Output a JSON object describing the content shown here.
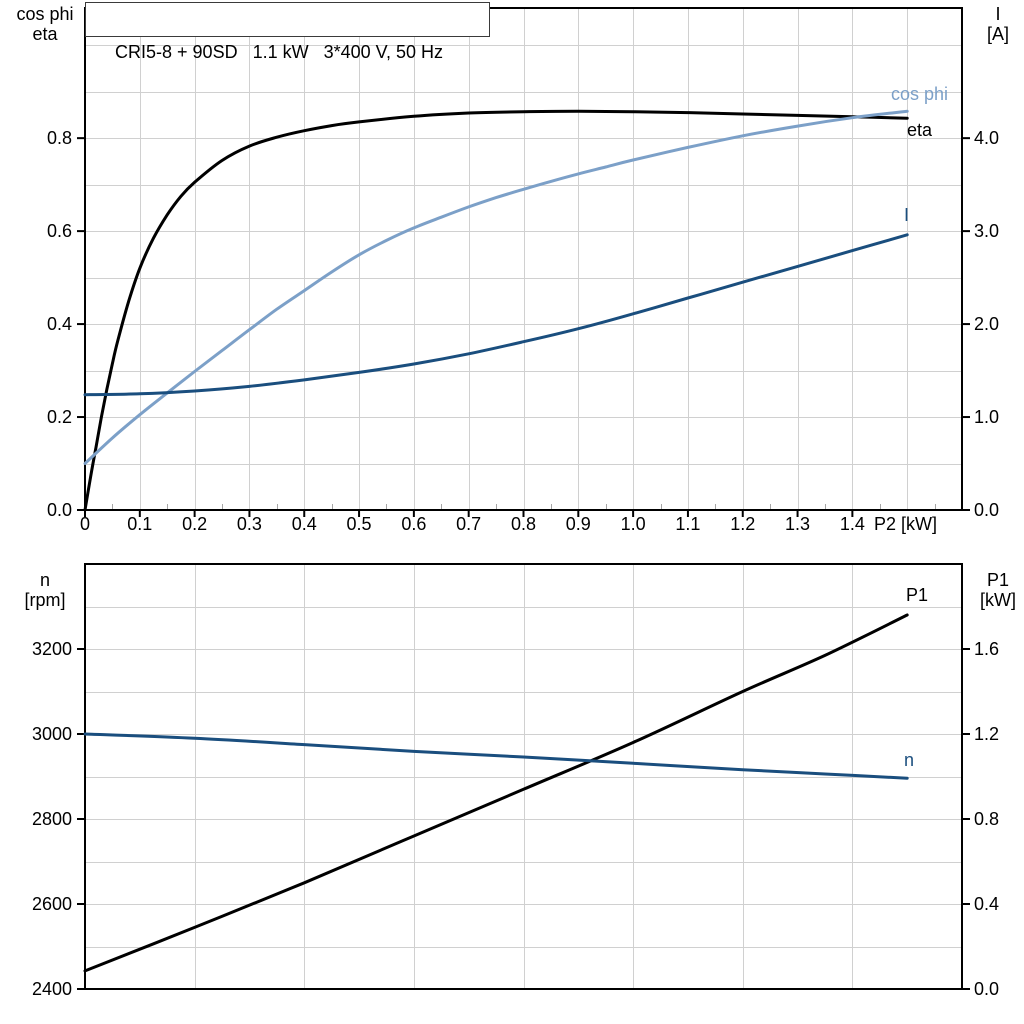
{
  "title_box": "CRI5-8 + 90SD   1.1 kW   3*400 V, 50 Hz",
  "colors": {
    "black": "#000000",
    "dark_blue": "#1a4e7e",
    "light_blue": "#7ca0c8",
    "grid": "#d0d0d0",
    "minor_tick": "#a6a6a6",
    "axis": "#000000"
  },
  "chart_data": [
    {
      "type": "line",
      "title": "CRI5-8 + 90SD   1.1 kW   3*400 V, 50 Hz",
      "x_axis": {
        "label": "P2 [kW]",
        "min": 0,
        "max": 1.6,
        "grid_step": 0.1,
        "minor_tick_step": 0.05,
        "tick_values": [
          0,
          0.1,
          0.2,
          0.3,
          0.4,
          0.5,
          0.6,
          0.7,
          0.8,
          0.9,
          1.0,
          1.1,
          1.2,
          1.3,
          1.4
        ],
        "tick_labels": [
          "0",
          "0.1",
          "0.2",
          "0.3",
          "0.4",
          "0.5",
          "0.6",
          "0.7",
          "0.8",
          "0.9",
          "1.0",
          "1.1",
          "1.2",
          "1.3",
          "1.4"
        ]
      },
      "left_axis": {
        "title_lines": [
          "cos phi",
          "eta"
        ],
        "min": 0,
        "max": 1.08,
        "grid_step": 0.1,
        "tick_values": [
          0,
          0.2,
          0.4,
          0.6,
          0.8
        ],
        "tick_labels": [
          "0.0",
          "0.2",
          "0.4",
          "0.6",
          "0.8"
        ]
      },
      "right_axis": {
        "title_lines": [
          "I",
          "[A]"
        ],
        "min": 0,
        "max": 5.4,
        "tick_values": [
          0,
          1,
          2,
          3,
          4
        ],
        "tick_labels": [
          "0.0",
          "1.0",
          "2.0",
          "3.0",
          "4.0"
        ]
      },
      "series": [
        {
          "id": "eta",
          "label": "eta",
          "axis": "left",
          "color": "black",
          "points": [
            [
              0,
              0
            ],
            [
              0.01,
              0.07
            ],
            [
              0.02,
              0.135
            ],
            [
              0.03,
              0.2
            ],
            [
              0.04,
              0.26
            ],
            [
              0.05,
              0.315
            ],
            [
              0.06,
              0.365
            ],
            [
              0.08,
              0.45
            ],
            [
              0.1,
              0.52
            ],
            [
              0.125,
              0.585
            ],
            [
              0.15,
              0.635
            ],
            [
              0.175,
              0.675
            ],
            [
              0.2,
              0.705
            ],
            [
              0.25,
              0.752
            ],
            [
              0.3,
              0.783
            ],
            [
              0.35,
              0.802
            ],
            [
              0.4,
              0.816
            ],
            [
              0.45,
              0.827
            ],
            [
              0.5,
              0.835
            ],
            [
              0.6,
              0.847
            ],
            [
              0.7,
              0.854
            ],
            [
              0.8,
              0.857
            ],
            [
              0.9,
              0.858
            ],
            [
              1.0,
              0.857
            ],
            [
              1.1,
              0.855
            ],
            [
              1.2,
              0.852
            ],
            [
              1.3,
              0.849
            ],
            [
              1.4,
              0.846
            ],
            [
              1.5,
              0.843
            ]
          ]
        },
        {
          "id": "cos_phi",
          "label": "cos phi",
          "axis": "left",
          "color": "light_blue",
          "points": [
            [
              0,
              0.1
            ],
            [
              0.05,
              0.155
            ],
            [
              0.1,
              0.205
            ],
            [
              0.15,
              0.252
            ],
            [
              0.2,
              0.298
            ],
            [
              0.25,
              0.343
            ],
            [
              0.3,
              0.388
            ],
            [
              0.35,
              0.432
            ],
            [
              0.4,
              0.472
            ],
            [
              0.45,
              0.512
            ],
            [
              0.5,
              0.549
            ],
            [
              0.55,
              0.58
            ],
            [
              0.6,
              0.607
            ],
            [
              0.65,
              0.63
            ],
            [
              0.7,
              0.652
            ],
            [
              0.75,
              0.672
            ],
            [
              0.8,
              0.69
            ],
            [
              0.85,
              0.707
            ],
            [
              0.9,
              0.723
            ],
            [
              0.95,
              0.738
            ],
            [
              1.0,
              0.753
            ],
            [
              1.1,
              0.78
            ],
            [
              1.2,
              0.805
            ],
            [
              1.3,
              0.826
            ],
            [
              1.4,
              0.844
            ],
            [
              1.5,
              0.858
            ]
          ]
        },
        {
          "id": "I",
          "label": "I",
          "axis": "right",
          "color": "dark_blue",
          "points": [
            [
              0,
              1.24
            ],
            [
              0.1,
              1.25
            ],
            [
              0.2,
              1.28
            ],
            [
              0.3,
              1.33
            ],
            [
              0.4,
              1.4
            ],
            [
              0.5,
              1.48
            ],
            [
              0.6,
              1.57
            ],
            [
              0.7,
              1.68
            ],
            [
              0.8,
              1.81
            ],
            [
              0.9,
              1.95
            ],
            [
              1.0,
              2.11
            ],
            [
              1.1,
              2.28
            ],
            [
              1.2,
              2.45
            ],
            [
              1.3,
              2.62
            ],
            [
              1.4,
              2.79
            ],
            [
              1.5,
              2.96
            ]
          ]
        }
      ]
    },
    {
      "type": "line",
      "x_axis": {
        "min": 0,
        "max": 1.6,
        "grid_step": 0.2,
        "tick_values": [],
        "tick_labels": []
      },
      "left_axis": {
        "title_lines": [
          "n",
          "[rpm]"
        ],
        "min": 2400,
        "max": 3400,
        "grid_step": 100,
        "tick_values": [
          2400,
          2600,
          2800,
          3000,
          3200
        ],
        "tick_labels": [
          "2400",
          "2600",
          "2800",
          "3000",
          "3200"
        ]
      },
      "right_axis": {
        "title_lines": [
          "P1",
          "[kW]"
        ],
        "min": 0,
        "max": 2.0,
        "tick_values": [
          0,
          0.4,
          0.8,
          1.2,
          1.6
        ],
        "tick_labels": [
          "0.0",
          "0.4",
          "0.8",
          "1.2",
          "1.6"
        ]
      },
      "series": [
        {
          "id": "P1",
          "label": "P1",
          "axis": "right",
          "color": "black",
          "points": [
            [
              0,
              0.085
            ],
            [
              0.2,
              0.29
            ],
            [
              0.4,
              0.5
            ],
            [
              0.6,
              0.72
            ],
            [
              0.8,
              0.94
            ],
            [
              1.0,
              1.16
            ],
            [
              1.2,
              1.4
            ],
            [
              1.35,
              1.57
            ],
            [
              1.5,
              1.76
            ]
          ]
        },
        {
          "id": "n",
          "label": "n",
          "axis": "left",
          "color": "dark_blue",
          "points": [
            [
              0,
              3000
            ],
            [
              0.2,
              2990
            ],
            [
              0.4,
              2975
            ],
            [
              0.6,
              2959
            ],
            [
              0.8,
              2946
            ],
            [
              1.0,
              2931
            ],
            [
              1.2,
              2916
            ],
            [
              1.35,
              2906
            ],
            [
              1.5,
              2896
            ]
          ]
        }
      ]
    }
  ]
}
